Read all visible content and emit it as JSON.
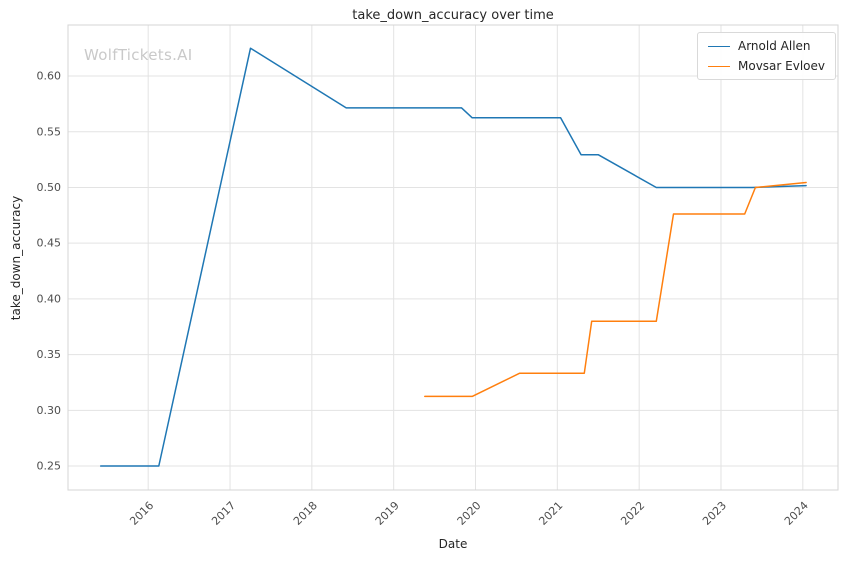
{
  "watermark": {
    "text": "WolfTickets.AI"
  },
  "chart_data": {
    "type": "line",
    "title": "take_down_accuracy over time",
    "xlabel": "Date",
    "ylabel": "take_down_accuracy",
    "xlim": [
      2015.02,
      2024.43
    ],
    "ylim": [
      0.2285,
      0.6458
    ],
    "xticks": [
      2016,
      2017,
      2018,
      2019,
      2020,
      2021,
      2022,
      2023,
      2024
    ],
    "yticks": [
      0.25,
      0.3,
      0.35,
      0.4,
      0.45,
      0.5,
      0.55,
      0.6
    ],
    "grid": true,
    "legend_position": "upper right",
    "series": [
      {
        "name": "Arnold Allen",
        "color": "#1f77b4",
        "points": [
          [
            2015.42,
            0.25
          ],
          [
            2016.13,
            0.25
          ],
          [
            2017.25,
            0.625
          ],
          [
            2018.42,
            0.5714
          ],
          [
            2019.83,
            0.5714
          ],
          [
            2019.96,
            0.5625
          ],
          [
            2021.04,
            0.5625
          ],
          [
            2021.29,
            0.5294
          ],
          [
            2021.5,
            0.5294
          ],
          [
            2022.21,
            0.5
          ],
          [
            2023.38,
            0.5
          ],
          [
            2024.04,
            0.5017
          ]
        ]
      },
      {
        "name": "Movsar Evloev",
        "color": "#ff7f0e",
        "points": [
          [
            2019.38,
            0.3125
          ],
          [
            2019.96,
            0.3125
          ],
          [
            2020.54,
            0.3333
          ],
          [
            2021.33,
            0.3333
          ],
          [
            2021.42,
            0.38
          ],
          [
            2022.21,
            0.38
          ],
          [
            2022.42,
            0.4762
          ],
          [
            2023.29,
            0.4762
          ],
          [
            2023.42,
            0.5
          ],
          [
            2024.04,
            0.5045
          ]
        ]
      }
    ],
    "colors": {
      "grid": "#e3e3e3",
      "spine": "#d5d5d5",
      "tick_text": "#4d4d4d",
      "title_text": "#262626"
    }
  }
}
